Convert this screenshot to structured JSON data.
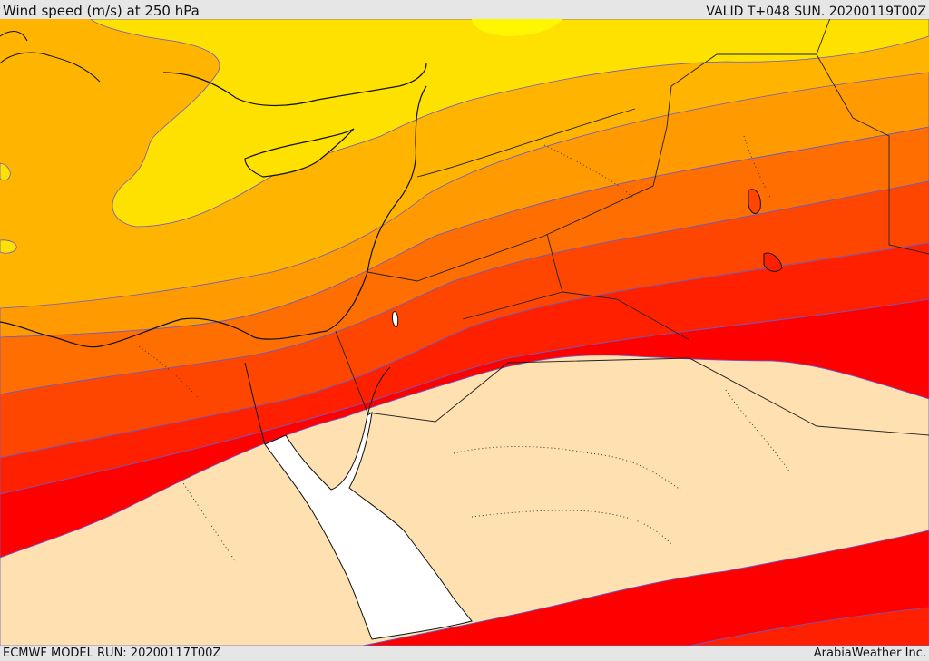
{
  "header": {
    "title": "Wind speed (m/s) at 250 hPa",
    "valid": "VALID T+048 SUN. 20200119T00Z"
  },
  "footer": {
    "model_run": "ECMWF MODEL RUN: 20200117T00Z",
    "credit": "ArabiaWeather Inc."
  },
  "map": {
    "colors": {
      "lightest_band": "#fff700",
      "band_1": "#ffe100",
      "band_2": "#ffb400",
      "band_3": "#ff9b00",
      "band_4": "#ff6e00",
      "band_5": "#ff4600",
      "band_6": "#ff2000",
      "strongest_band": "#ff0000",
      "calm_land": "#ffe0b0",
      "sea": "#ffffff",
      "contour": "#6a5acd",
      "coastline": "#111111"
    }
  }
}
